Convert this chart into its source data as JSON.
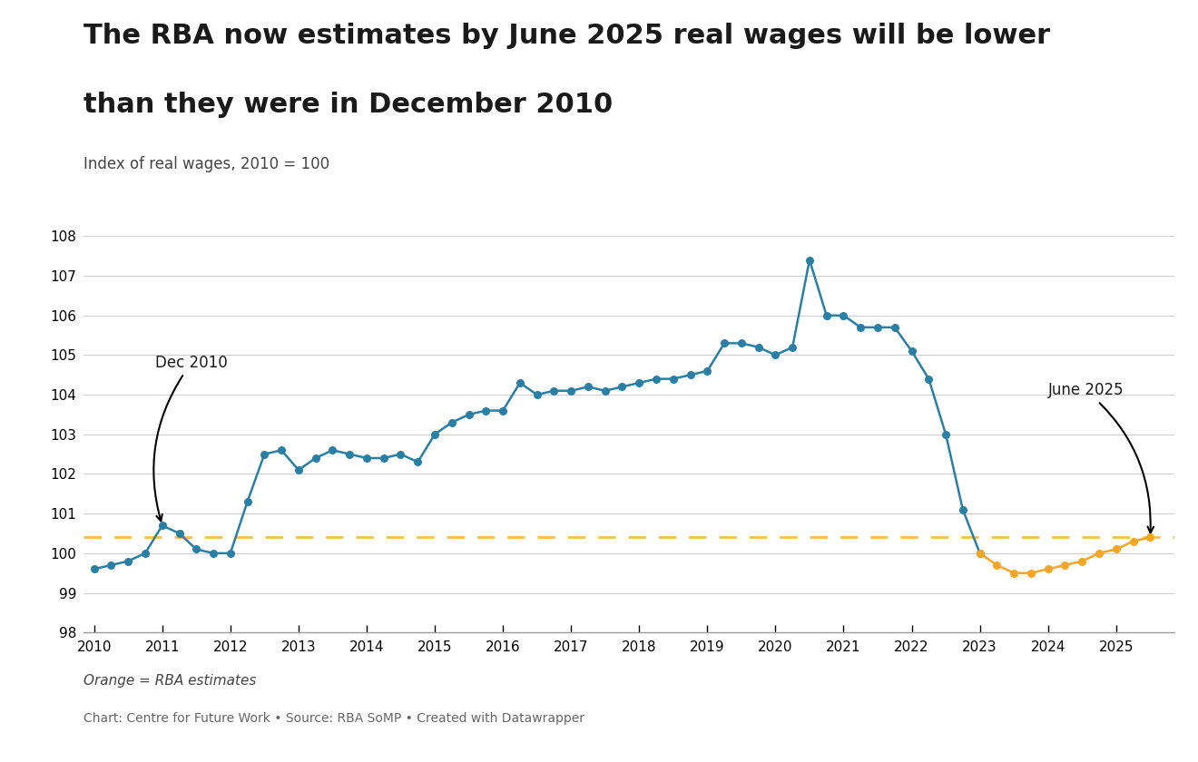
{
  "title_line1": "The RBA now estimates by June 2025 real wages will be lower",
  "title_line2": "than they were in December 2010",
  "subtitle": "Index of real wages, 2010 = 100",
  "footnote1": "Orange = RBA estimates",
  "footnote2": "Chart: Centre for Future Work • Source: RBA SoMP • Created with Datawrapper",
  "ylim": [
    98,
    108
  ],
  "yticks": [
    98,
    99,
    100,
    101,
    102,
    103,
    104,
    105,
    106,
    107,
    108
  ],
  "dashed_line_y": 100.4,
  "blue_color": "#2a7fa5",
  "orange_color": "#f5a623",
  "dashed_color": "#f5c050",
  "background_color": "#ffffff",
  "blue_data": {
    "dates": [
      2010.0,
      2010.25,
      2010.5,
      2010.75,
      2011.0,
      2011.25,
      2011.5,
      2011.75,
      2012.0,
      2012.25,
      2012.5,
      2012.75,
      2013.0,
      2013.25,
      2013.5,
      2013.75,
      2014.0,
      2014.25,
      2014.5,
      2014.75,
      2015.0,
      2015.25,
      2015.5,
      2015.75,
      2016.0,
      2016.25,
      2016.5,
      2016.75,
      2017.0,
      2017.25,
      2017.5,
      2017.75,
      2018.0,
      2018.25,
      2018.5,
      2018.75,
      2019.0,
      2019.25,
      2019.5,
      2019.75,
      2020.0,
      2020.25,
      2020.5,
      2020.75,
      2021.0,
      2021.25,
      2021.5,
      2021.75,
      2022.0,
      2022.25,
      2022.5,
      2022.75,
      2023.0
    ],
    "values": [
      99.6,
      99.7,
      99.8,
      100.0,
      100.7,
      100.5,
      100.1,
      100.0,
      100.0,
      101.3,
      102.5,
      102.6,
      102.1,
      102.4,
      102.6,
      102.5,
      102.4,
      102.4,
      102.5,
      102.3,
      103.0,
      103.3,
      103.5,
      103.6,
      103.6,
      104.3,
      104.0,
      104.1,
      104.1,
      104.2,
      104.1,
      104.2,
      104.3,
      104.4,
      104.4,
      104.5,
      104.6,
      105.3,
      105.3,
      105.2,
      105.0,
      105.2,
      107.4,
      106.0,
      106.0,
      105.7,
      105.7,
      105.7,
      105.1,
      104.4,
      103.0,
      101.1,
      100.0
    ]
  },
  "orange_data": {
    "dates": [
      2023.0,
      2023.25,
      2023.5,
      2023.75,
      2024.0,
      2024.25,
      2024.5,
      2024.75,
      2025.0,
      2025.25,
      2025.5
    ],
    "values": [
      100.0,
      99.7,
      99.5,
      99.5,
      99.6,
      99.7,
      99.8,
      100.0,
      100.1,
      100.3,
      100.4
    ]
  }
}
